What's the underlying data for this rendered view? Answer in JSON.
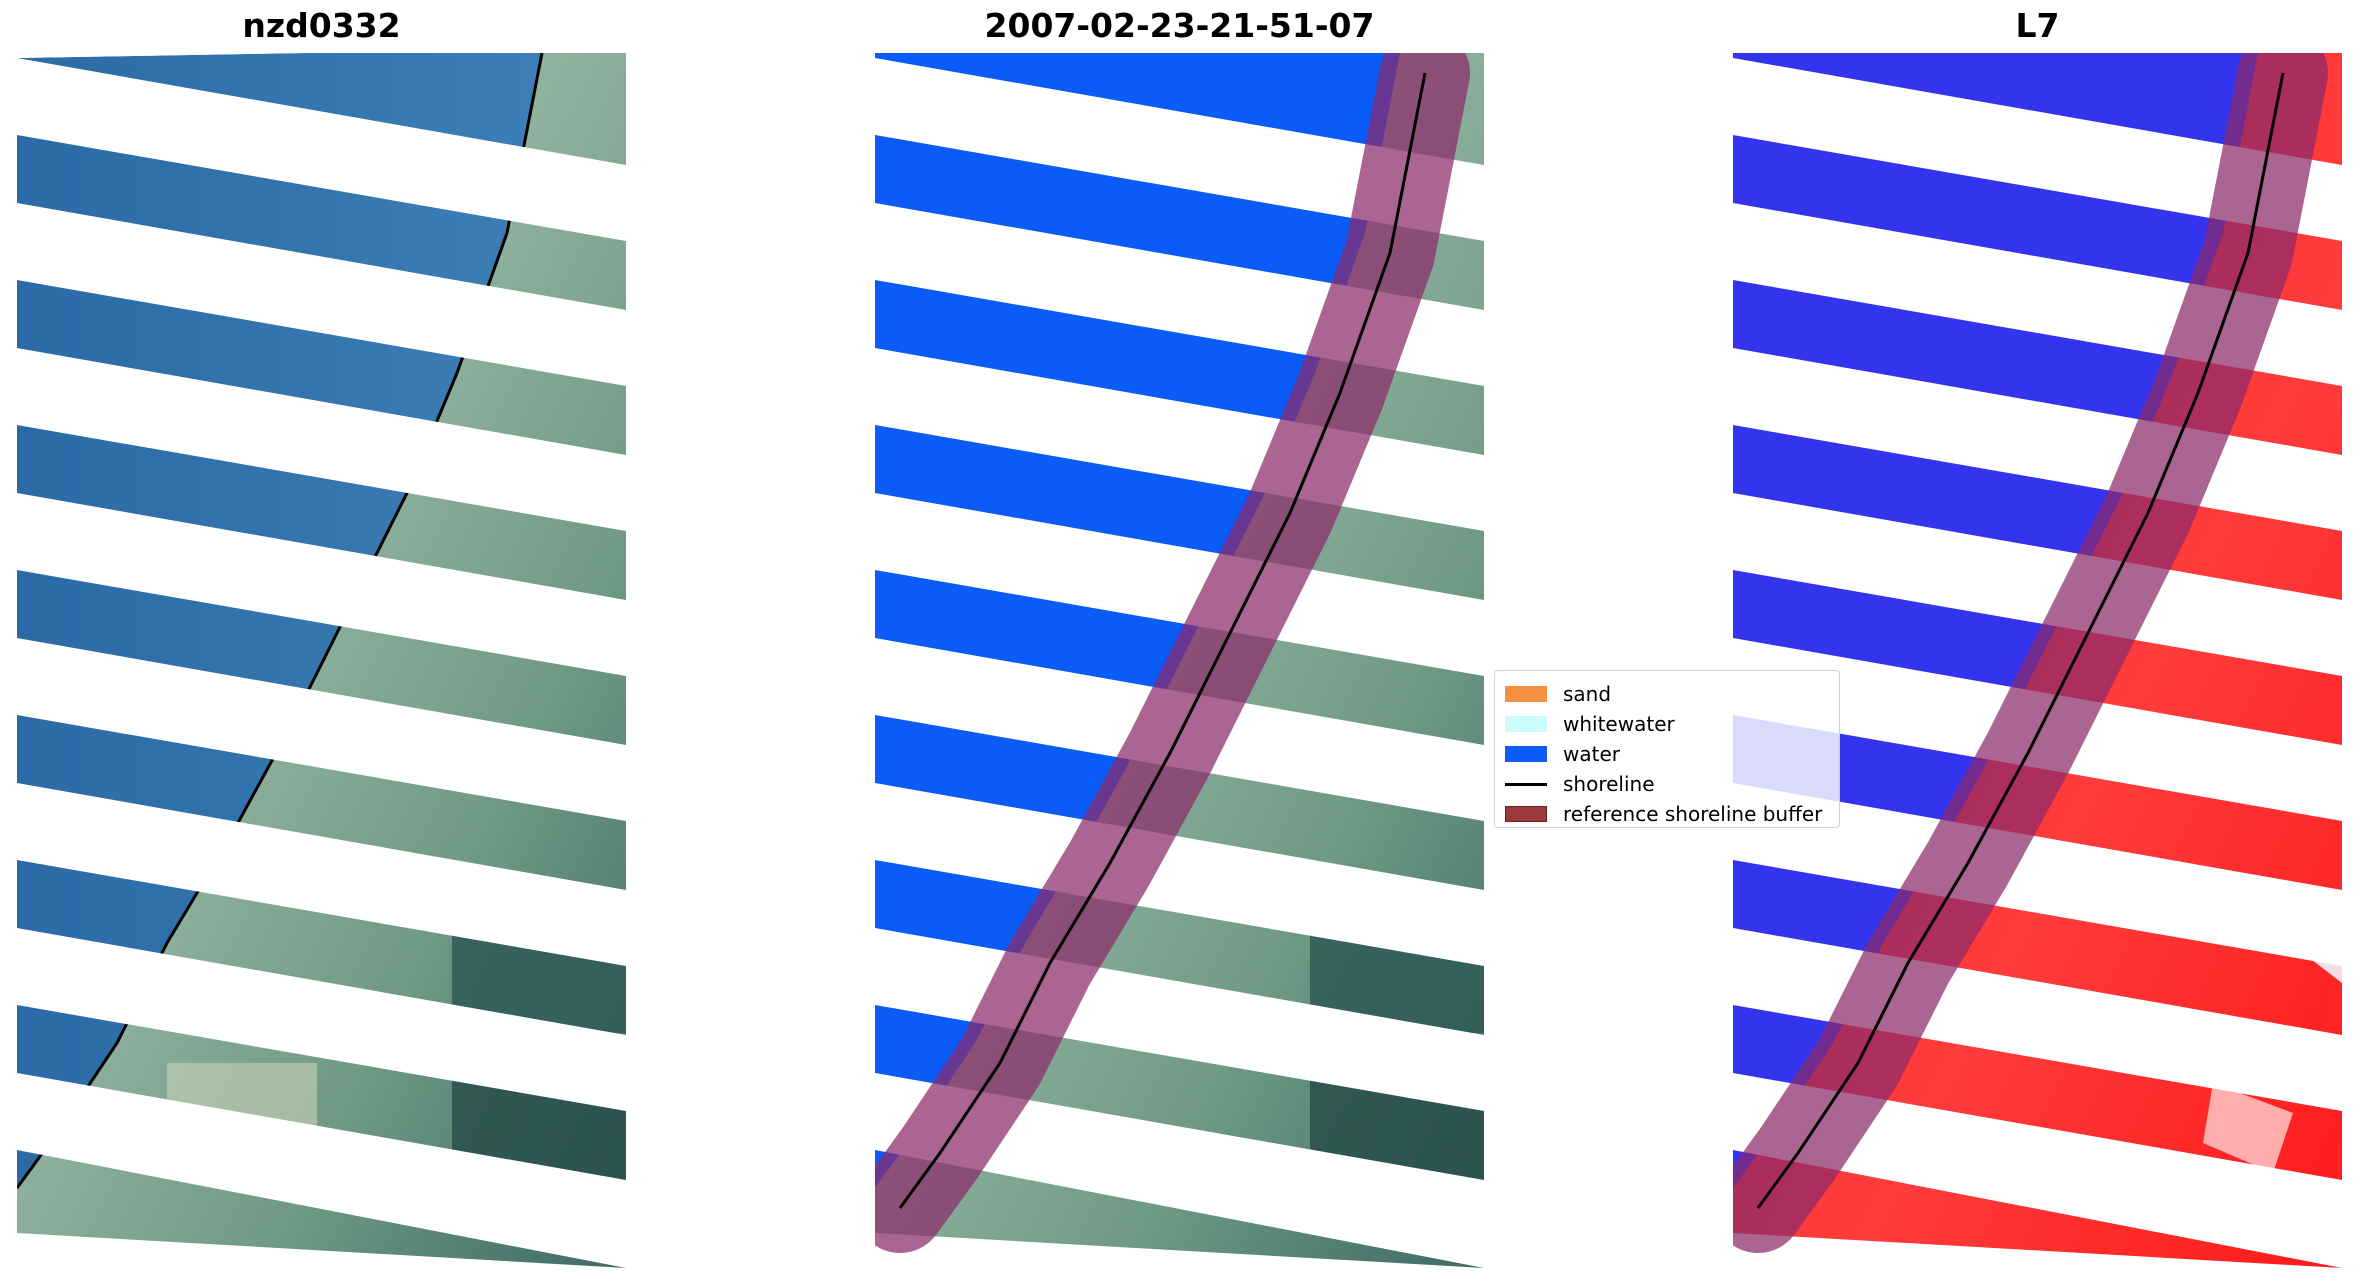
{
  "panels": [
    {
      "title": "nzd0332"
    },
    {
      "title": "2007-02-23-21-51-07"
    },
    {
      "title": "L7"
    }
  ],
  "legend": {
    "items": [
      {
        "label": "sand",
        "color": "#f59042"
      },
      {
        "label": "whitewater",
        "color": "#ccfbfb"
      },
      {
        "label": "water",
        "color": "#0b5cf7"
      },
      {
        "label": "shoreline",
        "color": "#000000"
      },
      {
        "label": "reference shoreline buffer",
        "color": "#9b3a3a"
      }
    ]
  },
  "colors": {
    "rgb_sea": "#2f6fab",
    "rgb_land": "#8fb3a8",
    "classified_water": "#0b5cf7",
    "mndwi_water": "#3333ee",
    "mndwi_land": "#ff1a1a",
    "buffer": "#8b2a6a"
  }
}
